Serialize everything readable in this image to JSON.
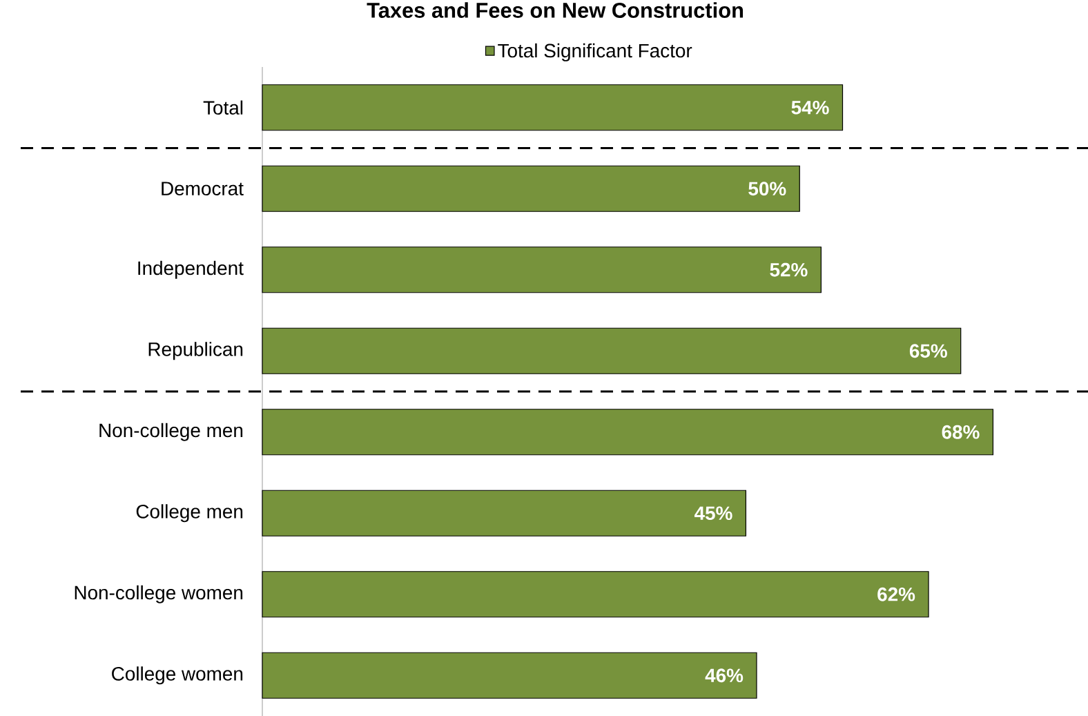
{
  "chart_data": {
    "type": "bar",
    "orientation": "horizontal",
    "title": "Taxes and Fees on New Construction",
    "categories": [
      "Total",
      "Democrat",
      "Independent",
      "Republican",
      "Non-college men",
      "College men",
      "Non-college women",
      "College women"
    ],
    "series": [
      {
        "name": "Total Significant Factor",
        "color": "#77933c",
        "values": [
          54,
          50,
          52,
          65,
          68,
          45,
          62,
          46
        ],
        "value_labels": [
          "54%",
          "50%",
          "52%",
          "65%",
          "68%",
          "45%",
          "62%",
          "46%"
        ]
      }
    ],
    "tick_labels": "y",
    "legend": "top"
  }
}
